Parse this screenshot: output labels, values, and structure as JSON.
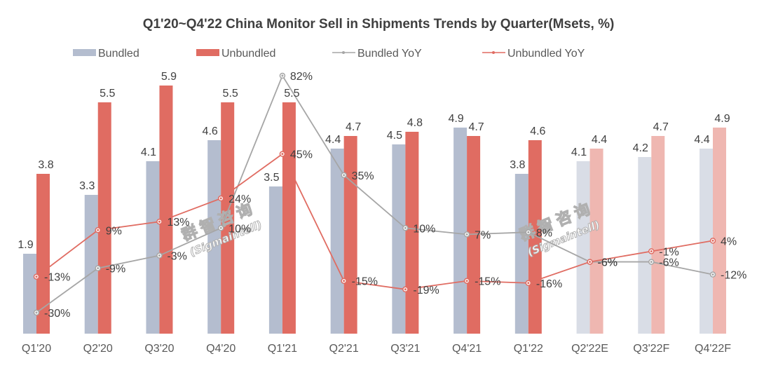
{
  "chart_data": {
    "type": "bar",
    "title": "Q1'20~Q4'22 China Monitor Sell in Shipments Trends by Quarter(Msets, %)",
    "xlabel": "",
    "ylabel": "",
    "categories": [
      "Q1'20",
      "Q2'20",
      "Q3'20",
      "Q4'20",
      "Q1'21",
      "Q2'21",
      "Q3'21",
      "Q4'21",
      "Q1'22",
      "Q2'22E",
      "Q3'22F",
      "Q4'22F"
    ],
    "forecast_from_index": 9,
    "series": [
      {
        "name": "Bundled",
        "kind": "bar",
        "color": "#b4bdcf",
        "forecast_color": "#d9dde6",
        "values": [
          1.9,
          3.3,
          4.1,
          4.6,
          3.5,
          4.4,
          4.5,
          4.9,
          3.8,
          4.1,
          4.2,
          4.4
        ],
        "labels": [
          "1.9",
          "3.3",
          "4.1",
          "4.6",
          "3.5",
          "4.4",
          "4.5",
          "4.9",
          "3.8",
          "4.1",
          "4.2",
          "4.4"
        ]
      },
      {
        "name": "Unbundled",
        "kind": "bar",
        "color": "#e06c62",
        "forecast_color": "#efb7b1",
        "values": [
          3.8,
          5.5,
          5.9,
          5.5,
          5.5,
          4.7,
          4.8,
          4.7,
          4.6,
          4.4,
          4.7,
          4.9
        ],
        "labels": [
          "3.8",
          "5.5",
          "5.9",
          "5.5",
          "5.5",
          "4.7",
          "4.8",
          "4.7",
          "4.6",
          "4.4",
          "4.7",
          "4.9"
        ]
      },
      {
        "name": "Bundled YoY",
        "kind": "line",
        "color": "#a6a6a6",
        "unit": "%",
        "values": [
          -30,
          -9,
          -3,
          10,
          82,
          35,
          10,
          7,
          8,
          -6,
          -6,
          -12
        ],
        "labels": [
          "-30%",
          "-9%",
          "-3%",
          "10%",
          "82%",
          "35%",
          "10%",
          "7%",
          "8%",
          "-6%",
          "-6%",
          "-12%"
        ]
      },
      {
        "name": "Unbundled YoY",
        "kind": "line",
        "color": "#e06c62",
        "unit": "%",
        "values": [
          -13,
          9,
          13,
          24,
          45,
          -15,
          -19,
          -15,
          -16,
          -6,
          -1,
          4
        ],
        "labels": [
          "-13%",
          "9%",
          "13%",
          "24%",
          "45%",
          "-15%",
          "-19%",
          "-15%",
          "-16%",
          "-6%",
          "-1%",
          "4%"
        ]
      }
    ],
    "bar_axis": {
      "ylim": [
        0,
        6.0
      ],
      "visible": false
    },
    "yoy_axis": {
      "ylim": [
        -40,
        90
      ],
      "visible": false
    },
    "grid": false,
    "legend": {
      "position": "top",
      "entries": [
        "Bundled",
        "Unbundled",
        "Bundled YoY",
        "Unbundled YoY"
      ]
    }
  },
  "watermark": {
    "chinese": "群智咨询",
    "english": "(Sigmaintell)"
  }
}
